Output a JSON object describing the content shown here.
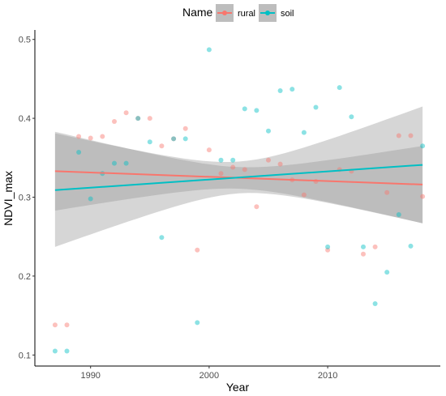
{
  "chart_data": {
    "type": "scatter",
    "title": "",
    "xlabel": "Year",
    "ylabel": "NDVI_max",
    "xlim": [
      1985.3,
      2019.5
    ],
    "ylim": [
      0.086,
      0.512
    ],
    "x_ticks": [
      1990,
      2000,
      2010
    ],
    "x_tick_labels": [
      "1990",
      "2000",
      "2010"
    ],
    "y_ticks": [
      0.1,
      0.2,
      0.3,
      0.4,
      0.5
    ],
    "y_tick_labels": [
      "0.1",
      "0.2",
      "0.3",
      "0.4",
      "0.5"
    ],
    "grid": false,
    "legend": {
      "title": "Name",
      "placement": "top",
      "entries": [
        "rural",
        "soil"
      ]
    },
    "series": [
      {
        "name": "rural",
        "color": "#F8766D",
        "points": [
          [
            1987,
            0.138
          ],
          [
            1988,
            0.138
          ],
          [
            1989,
            0.377
          ],
          [
            1990,
            0.375
          ],
          [
            1991,
            0.377
          ],
          [
            1992,
            0.396
          ],
          [
            1993,
            0.407
          ],
          [
            1994,
            0.4
          ],
          [
            1995,
            0.4
          ],
          [
            1996,
            0.365
          ],
          [
            1997,
            0.374
          ],
          [
            1998,
            0.387
          ],
          [
            1999,
            0.233
          ],
          [
            2000,
            0.36
          ],
          [
            2001,
            0.33
          ],
          [
            2002,
            0.338
          ],
          [
            2003,
            0.335
          ],
          [
            2004,
            0.288
          ],
          [
            2005,
            0.347
          ],
          [
            2006,
            0.342
          ],
          [
            2007,
            0.322
          ],
          [
            2008,
            0.303
          ],
          [
            2009,
            0.32
          ],
          [
            2010,
            0.233
          ],
          [
            2011,
            0.335
          ],
          [
            2012,
            0.333
          ],
          [
            2013,
            0.228
          ],
          [
            2014,
            0.237
          ],
          [
            2015,
            0.306
          ],
          [
            2016,
            0.378
          ],
          [
            2017,
            0.378
          ],
          [
            2018,
            0.301
          ]
        ],
        "trend": {
          "x": [
            1987,
            2018
          ],
          "y": [
            0.333,
            0.316
          ]
        },
        "ci": {
          "x": [
            1987,
            2018
          ],
          "lower": [
            0.283,
            0.267
          ],
          "upper": [
            0.383,
            0.365
          ]
        }
      },
      {
        "name": "soil",
        "color": "#00BFC4",
        "points": [
          [
            1987,
            0.105
          ],
          [
            1988,
            0.105
          ],
          [
            1989,
            0.357
          ],
          [
            1990,
            0.298
          ],
          [
            1991,
            0.33
          ],
          [
            1992,
            0.343
          ],
          [
            1993,
            0.343
          ],
          [
            1994,
            0.4
          ],
          [
            1995,
            0.37
          ],
          [
            1996,
            0.249
          ],
          [
            1997,
            0.374
          ],
          [
            1998,
            0.374
          ],
          [
            1999,
            0.141
          ],
          [
            2000,
            0.487
          ],
          [
            2001,
            0.347
          ],
          [
            2002,
            0.347
          ],
          [
            2003,
            0.412
          ],
          [
            2004,
            0.41
          ],
          [
            2005,
            0.384
          ],
          [
            2006,
            0.435
          ],
          [
            2007,
            0.437
          ],
          [
            2008,
            0.382
          ],
          [
            2009,
            0.414
          ],
          [
            2010,
            0.237
          ],
          [
            2011,
            0.439
          ],
          [
            2012,
            0.402
          ],
          [
            2013,
            0.237
          ],
          [
            2014,
            0.165
          ],
          [
            2015,
            0.205
          ],
          [
            2016,
            0.278
          ],
          [
            2017,
            0.238
          ],
          [
            2018,
            0.365
          ]
        ],
        "trend": {
          "x": [
            1987,
            2018
          ],
          "y": [
            0.309,
            0.341
          ]
        },
        "ci": {
          "x": [
            1987,
            2018
          ],
          "lower": [
            0.237,
            0.266
          ],
          "upper": [
            0.381,
            0.414
          ]
        }
      }
    ]
  }
}
